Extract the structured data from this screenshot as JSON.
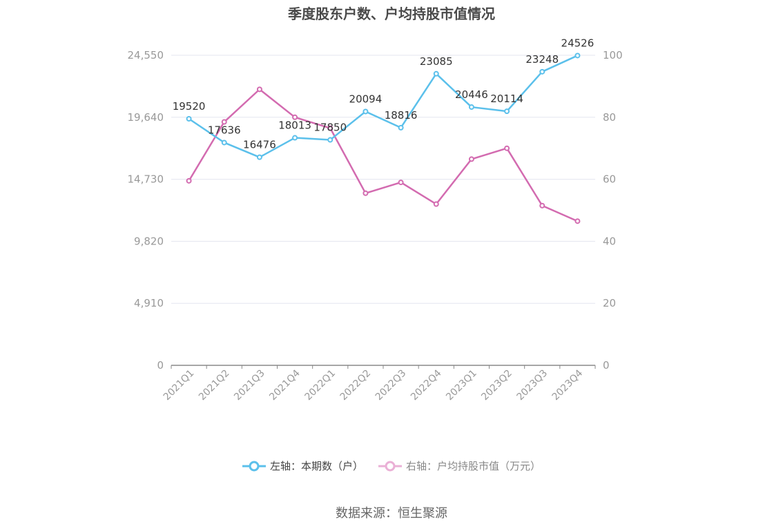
{
  "title": "季度股东户数、户均持股市值情况",
  "source": "数据来源：恒生聚源",
  "legend": {
    "left_label": "左轴：本期数（户）",
    "right_label": "右轴：户均持股市值（万元）"
  },
  "colors": {
    "left_series": "#5bc0eb",
    "right_series": "#d36bb0",
    "grid": "#e3e5ef",
    "axis_text": "#999999"
  },
  "chart_data": {
    "type": "line",
    "categories": [
      "2021Q1",
      "2021Q2",
      "2021Q3",
      "2021Q4",
      "2022Q1",
      "2022Q2",
      "2022Q3",
      "2022Q4",
      "2023Q1",
      "2023Q2",
      "2023Q3",
      "2023Q4"
    ],
    "series": [
      {
        "name": "左轴：本期数（户）",
        "axis": "left",
        "values": [
          19520,
          17636,
          16476,
          18013,
          17850,
          20094,
          18816,
          23085,
          20446,
          20114,
          23248,
          24526
        ],
        "show_labels": true
      },
      {
        "name": "右轴：户均持股市值（万元）",
        "axis": "right",
        "values": [
          59.5,
          78.5,
          89,
          80,
          76.5,
          55.5,
          59,
          52,
          66.5,
          70,
          51.5,
          46.5
        ],
        "show_labels": false
      }
    ],
    "left_axis": {
      "ylim": [
        0,
        24550
      ],
      "ticks": [
        "0",
        "4,910",
        "9,820",
        "14,730",
        "19,640",
        "24,550"
      ]
    },
    "right_axis": {
      "ylim": [
        0,
        100
      ],
      "ticks": [
        "0",
        "20",
        "40",
        "60",
        "80",
        "100"
      ]
    },
    "grid": true,
    "legend_position": "bottom"
  }
}
